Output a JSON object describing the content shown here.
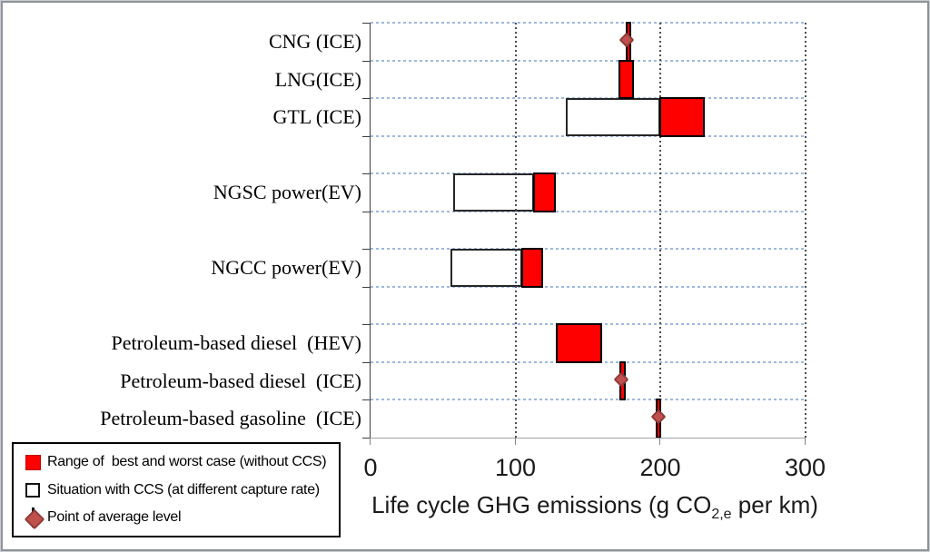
{
  "x_axis": {
    "title_prefix": "Life cycle GHG emissions (g CO",
    "title_sub": "2,e",
    "title_suffix": " per km)",
    "tick_labels": [
      "0",
      "100",
      "200",
      "300"
    ]
  },
  "legend": {
    "items": [
      {
        "symbol": "red-square-icon",
        "label": "Range of  best and worst case (without CCS)"
      },
      {
        "symbol": "white-square-icon",
        "label": "Situation with CCS (at different capture rate)"
      },
      {
        "symbol": "average-point-icon",
        "label": "Point of average level"
      }
    ]
  },
  "chart_data": {
    "type": "bar",
    "orientation": "horizontal-range",
    "xlabel": "Life cycle GHG emissions (g CO2,e per km)",
    "xlim": [
      0,
      300
    ],
    "xticks": [
      0,
      100,
      200,
      300
    ],
    "grid": "dotted, vertical dark gray at ticks, horizontal light blue at category boundaries",
    "legend_position": "bottom-left",
    "n_slots": 11,
    "categories": [
      "CNG (ICE)",
      "LNG(ICE)",
      "GTL (ICE)",
      "NGSC power(EV)",
      "NGCC power(EV)",
      "Petroleum-based diesel  (HEV)",
      "Petroleum-based diesel  (ICE)",
      "Petroleum-based gasoline  (ICE)"
    ],
    "category_slots": [
      0,
      1,
      2,
      4,
      6,
      8,
      9,
      10
    ],
    "series": [
      {
        "name": "Range of best and worst case (without CCS)",
        "type": "range-bar",
        "color": "#ff0000",
        "ranges": [
          [
            177,
            179
          ],
          [
            172,
            181
          ],
          [
            200,
            230
          ],
          [
            113,
            127
          ],
          [
            105,
            118
          ],
          [
            129,
            159
          ],
          [
            173,
            175
          ],
          [
            198,
            200
          ]
        ]
      },
      {
        "name": "Situation with CCS (at different capture rate)",
        "type": "range-bar",
        "color": "#ffffff",
        "ranges": [
          null,
          null,
          [
            135,
            200
          ],
          [
            57,
            113
          ],
          [
            55,
            105
          ],
          null,
          null,
          null
        ]
      },
      {
        "name": "Point of average level",
        "type": "point",
        "color": "#c0504d",
        "values": [
          178,
          null,
          null,
          null,
          null,
          null,
          174,
          200
        ]
      }
    ],
    "colors": {
      "range_bar": "#ff0000",
      "ccs_bar": "#ffffff",
      "bar_border": "#000000",
      "average_point": "#c0504d",
      "h_gridline": "#9db8e0",
      "v_gridline": "#4d4d4d"
    }
  }
}
